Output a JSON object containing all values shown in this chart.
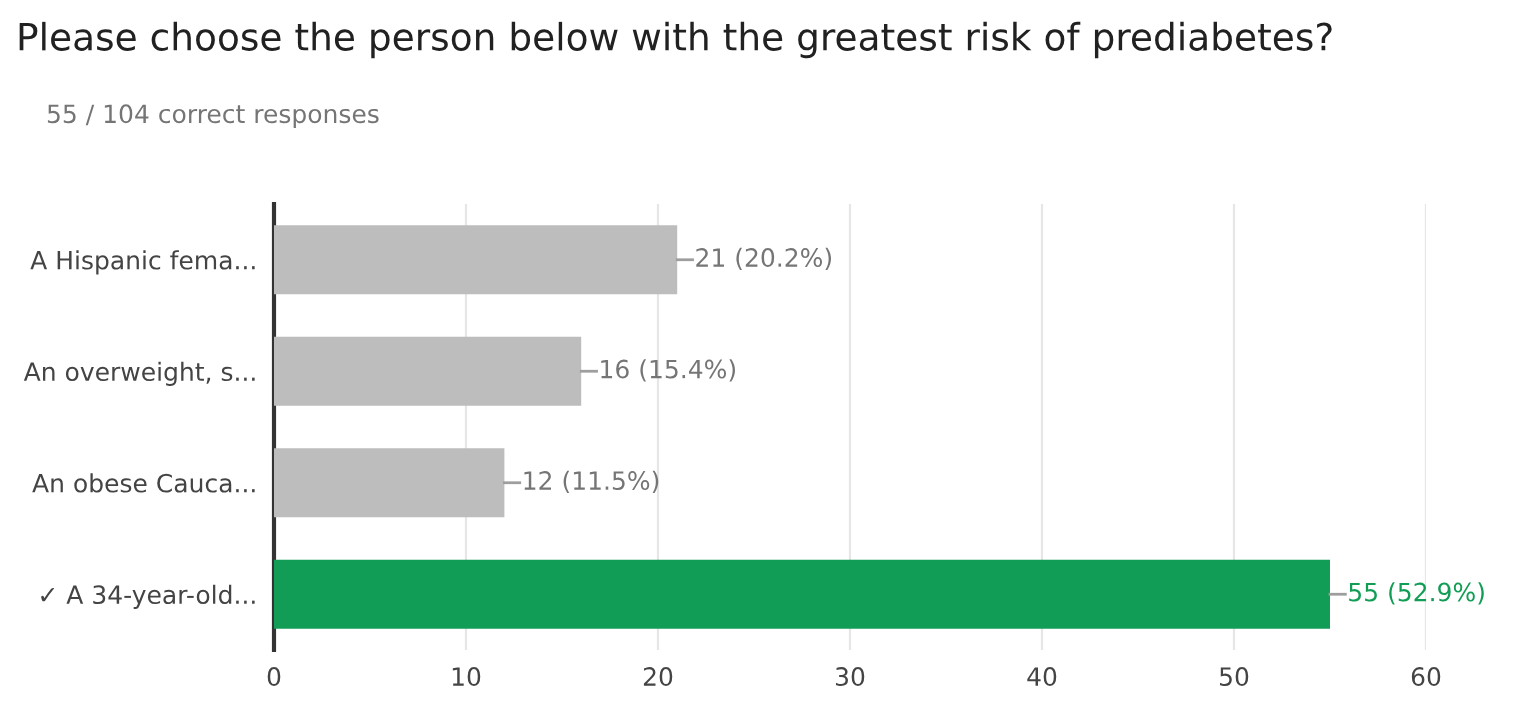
{
  "chart_data": {
    "type": "bar",
    "orientation": "horizontal",
    "title": "Please choose the person below with the greatest risk of prediabetes?",
    "subtitle": "55 / 104 correct responses",
    "categories": [
      "A Hispanic fema...",
      "An overweight, s...",
      "An obese Cauca...",
      "✓ A 34-year-old..."
    ],
    "values": [
      21,
      16,
      12,
      55
    ],
    "colors": [
      "#bdbdbd",
      "#bdbdbd",
      "#bdbdbd",
      "#129d56"
    ],
    "value_labels": [
      "21 (20.2%)",
      "16 (15.4%)",
      "12 (11.5%)",
      "55 (52.9%)"
    ],
    "xlim": [
      0,
      60
    ],
    "xticks": [
      0,
      10,
      20,
      30,
      40,
      50,
      60
    ],
    "grid": "x"
  }
}
